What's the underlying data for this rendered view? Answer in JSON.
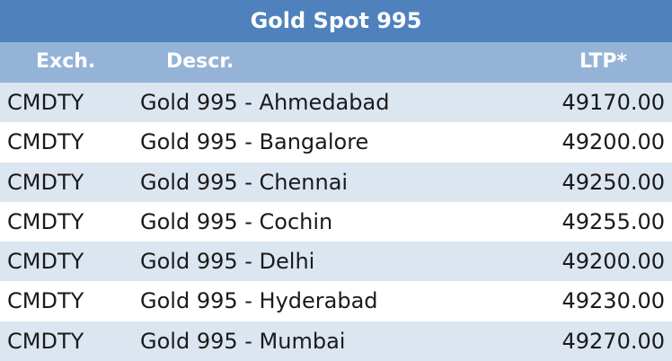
{
  "table": {
    "title": "Gold Spot 995",
    "header": [
      "Exch.",
      "Descr.",
      "LTP*"
    ],
    "rows": [
      [
        "CMDTY",
        "Gold 995 - Ahmedabad",
        "49170.00"
      ],
      [
        "CMDTY",
        "Gold 995 - Bangalore",
        "49200.00"
      ],
      [
        "CMDTY",
        "Gold 995 - Chennai",
        "49250.00"
      ],
      [
        "CMDTY",
        "Gold 995 - Cochin",
        "49255.00"
      ],
      [
        "CMDTY",
        "Gold 995 - Delhi",
        "49200.00"
      ],
      [
        "CMDTY",
        "Gold 995 - Hyderabad",
        "49230.00"
      ],
      [
        "CMDTY",
        "Gold 995 - Mumbai",
        "49270.00"
      ]
    ]
  }
}
